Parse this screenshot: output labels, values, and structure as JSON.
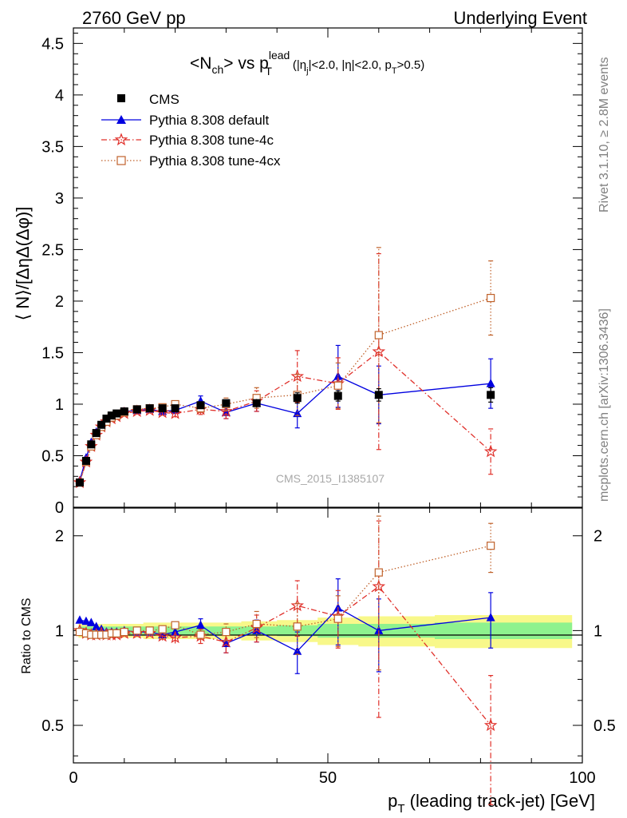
{
  "header": {
    "left": "2760 GeV pp",
    "right": "Underlying Event"
  },
  "plot_title": {
    "main": "<N",
    "main_sub": "ch",
    "vs": "> vs p",
    "vs_sup": "lead",
    "vs_sub": "T",
    "cuts_a": "(|η",
    "cuts_a_sub": "j",
    "cuts_b": "|<2.0, |η|<2.0, p",
    "cuts_b_sub": "T",
    "cuts_c": ">0.5)"
  },
  "side_labels": {
    "rivet": "Rivet 3.1.10, ≥ 2.8M events",
    "mcplots": "mcplots.cern.ch [arXiv:1306.3436]"
  },
  "watermark": "CMS_2015_I1385107",
  "colors": {
    "cms": "#000000",
    "default": "#0000e0",
    "tune4c": "#e0302a",
    "tune4cx": "#c0622b",
    "band_yellow": "#f8f88a",
    "band_green": "#8ef28e"
  },
  "chart_data": [
    {
      "type": "scatter",
      "panel": "main",
      "ylabel": "⟨ N⟩/[ΔηΔ(Δφ)]",
      "xlim": [
        0,
        100
      ],
      "ylim": [
        0,
        4.65
      ],
      "y_ticks": [
        "0",
        "0.5",
        "1",
        "1.5",
        "2",
        "2.5",
        "3",
        "3.5",
        "4",
        "4.5"
      ],
      "legend_position": "top-left",
      "legend": [
        "CMS",
        "Pythia 8.308 default",
        "Pythia 8.308 tune-4c",
        "Pythia 8.308 tune-4cx"
      ],
      "series": [
        {
          "name": "CMS",
          "x": [
            1.25,
            2.5,
            3.5,
            4.5,
            5.5,
            6.5,
            7.5,
            8.5,
            10,
            12.5,
            15,
            17.5,
            20,
            25,
            30,
            36,
            44,
            52,
            60,
            82
          ],
          "y": [
            0.24,
            0.45,
            0.61,
            0.72,
            0.8,
            0.86,
            0.89,
            0.91,
            0.93,
            0.95,
            0.96,
            0.96,
            0.96,
            0.99,
            1.01,
            1.01,
            1.06,
            1.08,
            1.09,
            1.09
          ],
          "yerr": [
            0.01,
            0.01,
            0.02,
            0.02,
            0.02,
            0.02,
            0.02,
            0.02,
            0.02,
            0.02,
            0.02,
            0.02,
            0.02,
            0.03,
            0.03,
            0.04,
            0.05,
            0.05,
            0.06,
            0.07
          ]
        },
        {
          "name": "Pythia 8.308 default",
          "x": [
            1.25,
            2.5,
            3.5,
            4.5,
            5.5,
            6.5,
            7.5,
            8.5,
            10,
            12.5,
            15,
            17.5,
            20,
            25,
            30,
            36,
            44,
            52,
            60,
            82
          ],
          "y": [
            0.26,
            0.48,
            0.63,
            0.73,
            0.8,
            0.85,
            0.88,
            0.9,
            0.93,
            0.94,
            0.95,
            0.93,
            0.94,
            1.03,
            0.92,
            1.01,
            0.91,
            1.27,
            1.09,
            1.2
          ],
          "yerr": [
            0.01,
            0.01,
            0.01,
            0.01,
            0.01,
            0.01,
            0.01,
            0.01,
            0.02,
            0.02,
            0.02,
            0.03,
            0.04,
            0.05,
            0.06,
            0.08,
            0.14,
            0.3,
            0.28,
            0.24
          ]
        },
        {
          "name": "Pythia 8.308 tune-4c",
          "x": [
            1.25,
            2.5,
            3.5,
            4.5,
            5.5,
            6.5,
            7.5,
            8.5,
            10,
            12.5,
            15,
            17.5,
            20,
            25,
            30,
            36,
            44,
            52,
            60,
            82
          ],
          "y": [
            0.24,
            0.44,
            0.59,
            0.7,
            0.78,
            0.83,
            0.86,
            0.88,
            0.91,
            0.93,
            0.94,
            0.92,
            0.91,
            0.95,
            0.93,
            1.03,
            1.27,
            1.2,
            1.51,
            0.54
          ],
          "yerr": [
            0.01,
            0.01,
            0.01,
            0.01,
            0.01,
            0.01,
            0.01,
            0.01,
            0.02,
            0.02,
            0.02,
            0.03,
            0.04,
            0.05,
            0.07,
            0.1,
            0.25,
            0.25,
            0.95,
            0.22
          ]
        },
        {
          "name": "Pythia 8.308 tune-4cx",
          "x": [
            1.25,
            2.5,
            3.5,
            4.5,
            5.5,
            6.5,
            7.5,
            8.5,
            10,
            12.5,
            15,
            17.5,
            20,
            25,
            30,
            36,
            44,
            52,
            60,
            82
          ],
          "y": [
            0.24,
            0.44,
            0.59,
            0.7,
            0.78,
            0.83,
            0.87,
            0.89,
            0.92,
            0.95,
            0.96,
            0.97,
            1.0,
            0.96,
            1.0,
            1.06,
            1.09,
            1.18,
            1.67,
            2.03
          ],
          "yerr": [
            0.01,
            0.01,
            0.01,
            0.01,
            0.01,
            0.01,
            0.01,
            0.01,
            0.02,
            0.02,
            0.02,
            0.03,
            0.03,
            0.04,
            0.06,
            0.1,
            0.2,
            0.22,
            0.85,
            0.36
          ]
        }
      ]
    },
    {
      "type": "scatter",
      "panel": "ratio",
      "ylabel": "Ratio to CMS",
      "xlabel_main": "p",
      "xlabel_sub": "T",
      "xlabel_rest": " (leading track-jet) [GeV]",
      "xlim": [
        0,
        100
      ],
      "ylim": [
        0.38,
        2.45
      ],
      "y_scale": "log",
      "y_ticks": [
        "0.5",
        "1",
        "2"
      ],
      "x_ticks": [
        "0",
        "50",
        "100"
      ],
      "band_x": [
        1.25,
        2.5,
        3.5,
        4.5,
        5.5,
        6.5,
        7.5,
        8.5,
        10,
        12.5,
        15,
        17.5,
        20,
        25,
        30,
        36,
        44,
        52,
        60,
        82
      ],
      "band_inner": [
        0.03,
        0.03,
        0.03,
        0.03,
        0.03,
        0.03,
        0.03,
        0.03,
        0.03,
        0.03,
        0.03,
        0.03,
        0.03,
        0.03,
        0.03,
        0.03,
        0.04,
        0.05,
        0.05,
        0.06
      ],
      "band_outer": [
        0.05,
        0.05,
        0.05,
        0.05,
        0.05,
        0.05,
        0.05,
        0.05,
        0.05,
        0.05,
        0.06,
        0.06,
        0.06,
        0.06,
        0.06,
        0.07,
        0.08,
        0.1,
        0.11,
        0.12
      ],
      "series": [
        {
          "name": "Pythia 8.308 default",
          "x": [
            1.25,
            2.5,
            3.5,
            4.5,
            5.5,
            6.5,
            7.5,
            8.5,
            10,
            12.5,
            15,
            17.5,
            20,
            25,
            30,
            36,
            44,
            52,
            60,
            82
          ],
          "y": [
            1.08,
            1.07,
            1.06,
            1.03,
            1.01,
            0.99,
            0.99,
            0.99,
            1.0,
            0.99,
            0.99,
            0.97,
            0.99,
            1.04,
            0.91,
            1.0,
            0.86,
            1.18,
            1.0,
            1.1
          ],
          "yerr": [
            0.01,
            0.01,
            0.01,
            0.01,
            0.01,
            0.01,
            0.01,
            0.01,
            0.02,
            0.02,
            0.02,
            0.03,
            0.04,
            0.05,
            0.06,
            0.08,
            0.13,
            0.28,
            0.26,
            0.22
          ]
        },
        {
          "name": "Pythia 8.308 tune-4c",
          "x": [
            1.25,
            2.5,
            3.5,
            4.5,
            5.5,
            6.5,
            7.5,
            8.5,
            10,
            12.5,
            15,
            17.5,
            20,
            25,
            30,
            36,
            44,
            52,
            60,
            82
          ],
          "y": [
            1.0,
            0.98,
            0.97,
            0.97,
            0.98,
            0.97,
            0.97,
            0.97,
            0.98,
            0.98,
            0.98,
            0.96,
            0.95,
            0.96,
            0.92,
            1.02,
            1.2,
            1.11,
            1.38,
            0.5
          ],
          "yerr": [
            0.01,
            0.01,
            0.01,
            0.01,
            0.01,
            0.01,
            0.01,
            0.01,
            0.02,
            0.02,
            0.02,
            0.03,
            0.04,
            0.05,
            0.07,
            0.1,
            0.24,
            0.23,
            0.85,
            0.22
          ]
        },
        {
          "name": "Pythia 8.308 tune-4cx",
          "x": [
            1.25,
            2.5,
            3.5,
            4.5,
            5.5,
            6.5,
            7.5,
            8.5,
            10,
            12.5,
            15,
            17.5,
            20,
            25,
            30,
            36,
            44,
            52,
            60,
            82
          ],
          "y": [
            0.99,
            0.98,
            0.97,
            0.97,
            0.97,
            0.97,
            0.98,
            0.98,
            0.99,
            1.0,
            1.0,
            1.01,
            1.04,
            0.97,
            0.99,
            1.05,
            1.03,
            1.09,
            1.53,
            1.86
          ],
          "yerr": [
            0.01,
            0.01,
            0.01,
            0.01,
            0.01,
            0.01,
            0.01,
            0.01,
            0.02,
            0.02,
            0.02,
            0.03,
            0.03,
            0.04,
            0.06,
            0.1,
            0.19,
            0.2,
            0.78,
            0.33
          ]
        }
      ]
    }
  ]
}
